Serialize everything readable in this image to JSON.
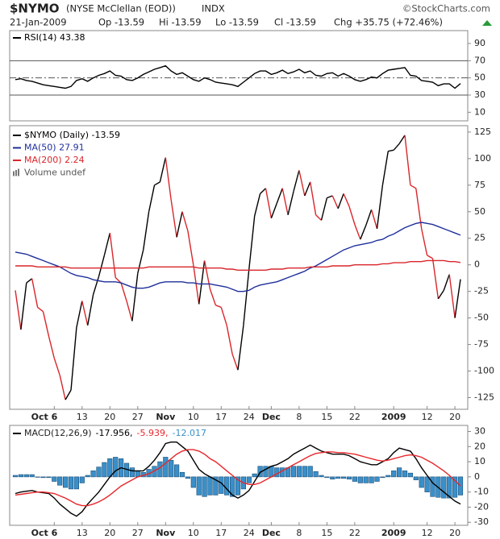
{
  "header": {
    "symbol": "$NYMO",
    "name": "(NYSE McClellan (EOD))",
    "exchange": "INDX",
    "source": "©StockCharts.com",
    "date": "21-Jan-2009",
    "open": "Op -13.59",
    "high": "Hi -13.59",
    "low": "Lo -13.59",
    "close": "Cl -13.59",
    "change": "Chg +35.75 (+72.46%)"
  },
  "chart_data": [
    {
      "type": "line",
      "series": [
        {
          "name": "RSI(14) 43.38",
          "color": "#000000",
          "values": [
            48,
            49,
            47,
            46,
            44,
            42,
            41,
            40,
            39,
            38,
            40,
            47,
            49,
            46,
            50,
            53,
            55,
            58,
            53,
            52,
            48,
            47,
            50,
            54,
            57,
            60,
            62,
            64,
            58,
            54,
            56,
            52,
            48,
            46,
            50,
            48,
            45,
            44,
            43,
            42,
            40,
            45,
            50,
            55,
            58,
            58,
            54,
            56,
            59,
            55,
            57,
            60,
            56,
            58,
            53,
            52,
            55,
            56,
            52,
            55,
            52,
            48,
            46,
            48,
            51,
            50,
            55,
            59,
            60,
            61,
            62,
            53,
            52,
            47,
            46,
            45,
            41,
            43,
            43,
            38,
            43.38
          ]
        }
      ],
      "ylim": [
        0,
        105
      ],
      "yticks": [
        10,
        30,
        50,
        70,
        90
      ],
      "reference_lines": [
        30,
        70
      ],
      "centerline": 50
    },
    {
      "type": "line",
      "categories": [
        null,
        null,
        null,
        null,
        null,
        null,
        null,
        "Oct 6",
        null,
        null,
        null,
        null,
        "13",
        null,
        null,
        null,
        null,
        "20",
        null,
        null,
        null,
        null,
        "27",
        null,
        null,
        null,
        null,
        "Nov",
        null,
        null,
        null,
        null,
        "10",
        null,
        null,
        null,
        null,
        "17",
        null,
        null,
        null,
        null,
        "24",
        null,
        null,
        null,
        "Dec",
        null,
        null,
        null,
        null,
        "8",
        null,
        null,
        null,
        null,
        "15",
        null,
        null,
        null,
        null,
        "22",
        null,
        null,
        null,
        null,
        null,
        null,
        "2009",
        null,
        null,
        null,
        null,
        null,
        "12",
        null,
        null,
        null,
        null,
        "20",
        null
      ],
      "series": [
        {
          "name": "$NYMO (Daily) -13.59",
          "color": "#000000",
          "down_color": "#d9262b",
          "values": [
            -24,
            -61,
            -17,
            -13,
            -40,
            -44,
            -67,
            -88,
            -104,
            -127,
            -118,
            -59,
            -34,
            -57,
            -28,
            -11,
            9,
            30,
            -12,
            -17,
            -34,
            -53,
            -8,
            14,
            50,
            75,
            78,
            101,
            61,
            26,
            50,
            32,
            0,
            -37,
            4,
            -23,
            -38,
            -40,
            -57,
            -84,
            -99,
            -57,
            -4,
            46,
            67,
            72,
            44,
            58,
            72,
            47,
            69,
            89,
            65,
            78,
            47,
            42,
            63,
            65,
            53,
            67,
            55,
            38,
            24,
            37,
            52,
            34,
            75,
            107,
            108,
            114,
            122,
            75,
            72,
            34,
            9,
            6,
            -32,
            -24,
            -9,
            -50,
            -13.59
          ]
        },
        {
          "name": "MA(50) 27.91",
          "color": "#1f2f9a",
          "values": [
            12,
            11,
            10,
            8,
            6,
            4,
            2,
            0,
            -2,
            -5,
            -8,
            -10,
            -11,
            -12,
            -14,
            -15,
            -16,
            -16,
            -16,
            -17,
            -19,
            -21,
            -22,
            -22,
            -21,
            -19,
            -17,
            -16,
            -16,
            -16,
            -16,
            -17,
            -17,
            -18,
            -18,
            -18,
            -19,
            -20,
            -21,
            -23,
            -25,
            -25,
            -24,
            -21,
            -19,
            -18,
            -17,
            -16,
            -14,
            -12,
            -10,
            -8,
            -6,
            -3,
            -1,
            2,
            5,
            8,
            11,
            14,
            16,
            18,
            19,
            20,
            21,
            23,
            24,
            27,
            29,
            32,
            35,
            37,
            39,
            40,
            39,
            38,
            36,
            34,
            32,
            30,
            27.91
          ]
        },
        {
          "name": "MA(200) 2.24",
          "color": "#d9262b",
          "values": [
            -1,
            -1,
            -1,
            -1,
            -2,
            -2,
            -2,
            -2,
            -2,
            -2,
            -3,
            -3,
            -3,
            -3,
            -3,
            -3,
            -3,
            -3,
            -3,
            -3,
            -3,
            -3,
            -3,
            -3,
            -2,
            -2,
            -2,
            -2,
            -2,
            -2,
            -2,
            -2,
            -2,
            -3,
            -3,
            -3,
            -3,
            -3,
            -4,
            -4,
            -5,
            -5,
            -5,
            -5,
            -5,
            -5,
            -4,
            -4,
            -4,
            -3,
            -3,
            -3,
            -3,
            -2,
            -2,
            -2,
            -2,
            -1,
            -1,
            -1,
            -1,
            0,
            0,
            0,
            0,
            0,
            1,
            1,
            2,
            2,
            2,
            3,
            3,
            3,
            4,
            4,
            4,
            4,
            3,
            3,
            2.24
          ]
        }
      ],
      "volume_note": "Volume undef",
      "ylim": [
        -136,
        131
      ],
      "yticks": [
        -125,
        -100,
        -75,
        -50,
        -25,
        0,
        25,
        50,
        75,
        100,
        125
      ]
    },
    {
      "type": "line",
      "title": "MACD(12,26,9)",
      "categories": [
        null,
        null,
        null,
        null,
        null,
        null,
        null,
        "Oct 6",
        null,
        null,
        null,
        null,
        "13",
        null,
        null,
        null,
        null,
        "20",
        null,
        null,
        null,
        null,
        "27",
        null,
        null,
        null,
        null,
        "Nov",
        null,
        null,
        null,
        null,
        "10",
        null,
        null,
        null,
        null,
        "17",
        null,
        null,
        null,
        null,
        "24",
        null,
        null,
        null,
        "Dec",
        null,
        null,
        null,
        null,
        "8",
        null,
        null,
        null,
        null,
        "15",
        null,
        null,
        null,
        null,
        "22",
        null,
        null,
        null,
        null,
        null,
        null,
        "2009",
        null,
        null,
        null,
        null,
        null,
        "12",
        null,
        null,
        null,
        null,
        "20",
        null
      ],
      "series": [
        {
          "name": "-12.017",
          "color": "#3a8fc9",
          "type": "bar",
          "values": [
            1,
            1.5,
            1.5,
            1.5,
            0,
            -0.5,
            -0.5,
            -3,
            -5.5,
            -7,
            -8,
            -8,
            -4,
            1,
            4,
            6.5,
            9.5,
            12,
            13,
            12,
            9,
            6,
            4,
            3,
            5,
            7,
            10,
            13,
            11,
            8,
            3,
            -1,
            -7,
            -12,
            -13,
            -12,
            -12,
            -11,
            -12,
            -13,
            -12,
            -8,
            -4,
            2,
            7,
            7,
            7,
            6,
            6,
            6,
            7,
            7,
            7,
            7,
            3.5,
            1,
            -0.5,
            -1.5,
            -1,
            -1,
            -1.5,
            -3,
            -4,
            -4,
            -4,
            -3,
            -0.5,
            1,
            4,
            6,
            4,
            2.5,
            -2,
            -7,
            -10,
            -13,
            -13.5,
            -14,
            -14,
            -13.5,
            -12.017
          ]
        },
        {
          "name": "-17.956,",
          "color": "#000000",
          "values": [
            -11,
            -10,
            -9.5,
            -9,
            -10,
            -10.5,
            -11,
            -14,
            -18,
            -21,
            -24,
            -26,
            -23,
            -18,
            -14,
            -10,
            -5,
            0,
            4,
            6,
            5,
            4,
            4,
            4,
            7,
            11,
            16,
            22,
            23,
            23,
            20,
            17,
            11,
            5,
            2,
            0,
            -2,
            -4,
            -8,
            -12,
            -14,
            -12,
            -9,
            -3,
            3,
            5,
            7,
            8,
            10,
            12,
            15,
            17,
            19,
            21,
            19,
            17,
            16,
            15,
            15,
            15,
            14,
            12,
            10,
            9,
            8,
            8,
            10,
            12,
            16,
            19,
            18,
            17,
            12,
            6,
            1,
            -4,
            -7,
            -10,
            -13,
            -16,
            -17.956
          ]
        },
        {
          "name": "-5.939,",
          "color": "#e8262b",
          "values": [
            -12,
            -11.5,
            -11,
            -10.5,
            -10,
            -10,
            -10.5,
            -11,
            -12.5,
            -14,
            -16,
            -18,
            -19,
            -19,
            -18,
            -16.5,
            -14.5,
            -12,
            -9,
            -6,
            -4,
            -2,
            0,
            1,
            2,
            4,
            6,
            9,
            12,
            15,
            17,
            18,
            18,
            17,
            15,
            12,
            10,
            7,
            4,
            1,
            -2,
            -4,
            -5,
            -5,
            -4,
            -2,
            0,
            2,
            4,
            6,
            8,
            10,
            12,
            14,
            15.5,
            16,
            16.5,
            16.5,
            16,
            16,
            15.5,
            15,
            14,
            13,
            12,
            11,
            10.5,
            11,
            12,
            13,
            14,
            14.5,
            14,
            13,
            11,
            9,
            6.5,
            4,
            1,
            -2.5,
            -5.939
          ]
        }
      ],
      "legend_order": [
        1,
        2,
        0
      ],
      "ylim": [
        -32,
        34
      ],
      "yticks": [
        -30,
        -20,
        -10,
        0,
        10,
        20,
        30
      ]
    }
  ]
}
